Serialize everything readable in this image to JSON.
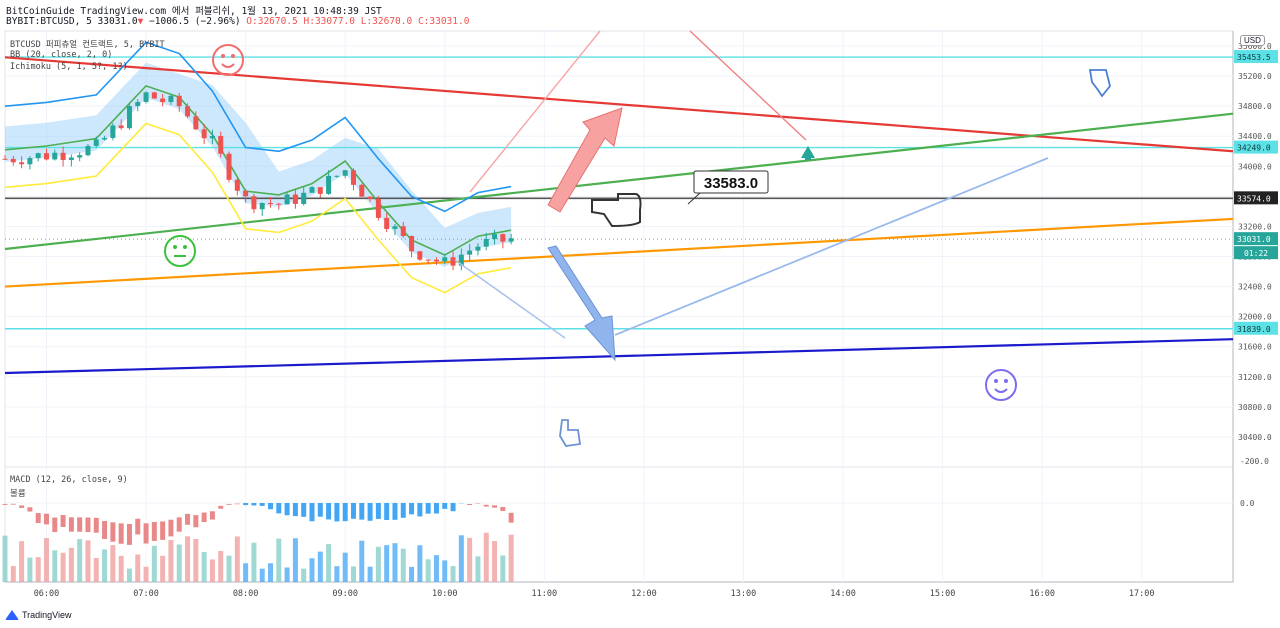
{
  "header": {
    "line1": "BitCoinGuide TradingView.com 에서 퍼블리쉬, 1월 13, 2021 10:48:39 JST",
    "symbol": "BYBIT:BTCUSD, 5",
    "last": "33031.0",
    "change": "−1006.5 (−2.96%)",
    "ohlc_o": "O:32670.5",
    "ohlc_h": "H:33077.0",
    "ohlc_l": "L:32670.0",
    "ohlc_c": "C:33031.0"
  },
  "legend": {
    "symbol_line": "BTCUSD 퍼피츄얼 컨트랙트, 5, BYBIT",
    "bb": "BB (20, close, 2, 0)",
    "ichimoku": "Ichimoku (5, 1, 5?, 1?)",
    "macd": "MACD (12, 26, close, 9)",
    "macd_sub": "볼륨"
  },
  "currency_button": "USD",
  "branding": "TradingView",
  "annotation_price": "33583.0",
  "countdown": "01:22",
  "colors": {
    "up": "#26a69a",
    "down": "#ef5350",
    "bb_basis": "#4caf50",
    "bb_upper": "#2196f3",
    "bb_lower": "#ffeb3b",
    "cloud": "#90caf9",
    "red_trend": "#e53935",
    "green_trend": "#4caf50",
    "orange_trend": "#ff9800",
    "blue_trend": "#1a1acc",
    "cyan_level": "#5ce1e6",
    "black_level": "#555555"
  },
  "chart_data": {
    "type": "line",
    "title": "",
    "symbol": "BYBIT:BTCUSD",
    "interval": "5",
    "ylim": [
      30000,
      35800
    ],
    "y_ticks": [
      30400,
      30800,
      31200,
      31600,
      32000,
      32400,
      32800,
      33200,
      33600,
      34000,
      34400,
      34800,
      35200,
      35600
    ],
    "x_ticks": [
      "06:00",
      "07:00",
      "08:00",
      "09:00",
      "10:00",
      "11:00",
      "12:00",
      "13:00",
      "14:00",
      "15:00",
      "16:00",
      "17:00"
    ],
    "price_labels": [
      {
        "value": 35453.5,
        "kind": "horizontal-level"
      },
      {
        "value": 34249.0,
        "kind": "horizontal-level"
      },
      {
        "value": 33574.0,
        "kind": "horizontal-level"
      },
      {
        "value": 33031.0,
        "kind": "last-price"
      },
      {
        "value": 31839.0,
        "kind": "horizontal-level"
      }
    ],
    "price_path_approx": [
      {
        "t": "05:35",
        "close": 34100
      },
      {
        "t": "06:00",
        "close": 34150
      },
      {
        "t": "06:30",
        "close": 34250
      },
      {
        "t": "07:00",
        "close": 34950
      },
      {
        "t": "07:20",
        "close": 34800
      },
      {
        "t": "07:40",
        "close": 34300
      },
      {
        "t": "08:00",
        "close": 33550
      },
      {
        "t": "08:20",
        "close": 33500
      },
      {
        "t": "08:40",
        "close": 33650
      },
      {
        "t": "09:00",
        "close": 33950
      },
      {
        "t": "09:20",
        "close": 33400
      },
      {
        "t": "09:40",
        "close": 32900
      },
      {
        "t": "10:00",
        "close": 32700
      },
      {
        "t": "10:20",
        "close": 32950
      },
      {
        "t": "10:40",
        "close": 33031
      }
    ],
    "trend_lines": [
      {
        "name": "",
        "color": "red",
        "from": {
          "t": "05:35",
          "value": 35450
        },
        "to": {
          "t": "17:55",
          "value": 34200
        }
      },
      {
        "name": "",
        "color": "green",
        "from": {
          "t": "05:35",
          "value": 32900
        },
        "to": {
          "t": "17:55",
          "value": 34700
        }
      },
      {
        "name": "",
        "color": "orange",
        "from": {
          "t": "05:35",
          "value": 32400
        },
        "to": {
          "t": "17:55",
          "value": 33300
        }
      },
      {
        "name": "",
        "color": "blue",
        "from": {
          "t": "05:35",
          "value": 31250
        },
        "to": {
          "t": "17:55",
          "value": 31700
        }
      }
    ],
    "macd_pane": {
      "ylim": [
        -400,
        200
      ],
      "y_ticks": [
        0.0,
        -200.0
      ]
    }
  }
}
